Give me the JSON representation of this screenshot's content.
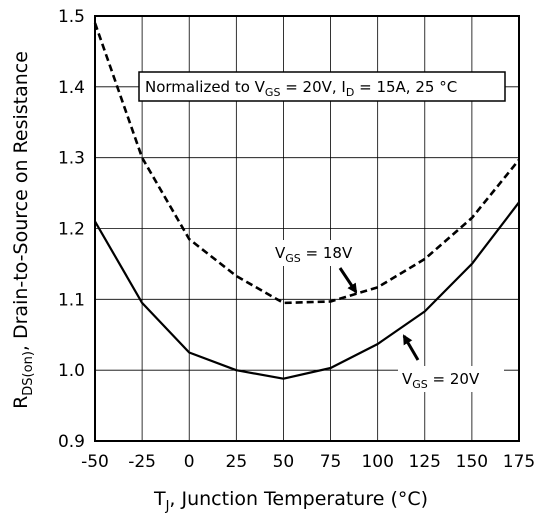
{
  "chart_data": {
    "type": "line",
    "xlabel": "T",
    "xlabel_sub": "J",
    "xlabel_rest": ", Junction Temperature (°C)",
    "ylabel_main": "R",
    "ylabel_sub": "DS(on)",
    "ylabel_rest": ",  Drain-to-Source on Resistance",
    "xlim": [
      -50,
      175
    ],
    "ylim": [
      0.9,
      1.5
    ],
    "xticks": [
      "-50",
      "-25",
      "0",
      "25",
      "50",
      "75",
      "100",
      "125",
      "150",
      "175"
    ],
    "yticks": [
      "0.9",
      "1.0",
      "1.1",
      "1.2",
      "1.3",
      "1.4",
      "1.5"
    ],
    "grid": true,
    "series": [
      {
        "name": "VGS = 18V",
        "style": "dashed",
        "x": [
          -50,
          -25,
          0,
          25,
          50,
          75,
          100,
          125,
          150,
          175
        ],
        "y": [
          1.49,
          1.3,
          1.185,
          1.133,
          1.095,
          1.097,
          1.117,
          1.157,
          1.215,
          1.297
        ]
      },
      {
        "name": "VGS = 20V",
        "style": "solid",
        "x": [
          -50,
          -25,
          0,
          25,
          50,
          75,
          100,
          125,
          150,
          175
        ],
        "y": [
          1.21,
          1.095,
          1.025,
          1.0,
          0.988,
          1.003,
          1.037,
          1.083,
          1.15,
          1.237
        ]
      }
    ],
    "annotations": {
      "norm_box": {
        "t1": "Normalized to V",
        "s1": "GS",
        "t2": " = 20V, I",
        "s2": "D",
        "t3": " = 15A, 25 °C"
      },
      "label_18": {
        "t1": "V",
        "s1": "GS",
        "t2": " = 18V"
      },
      "label_20": {
        "t1": "V",
        "s1": "GS",
        "t2": " = 20V"
      }
    }
  }
}
